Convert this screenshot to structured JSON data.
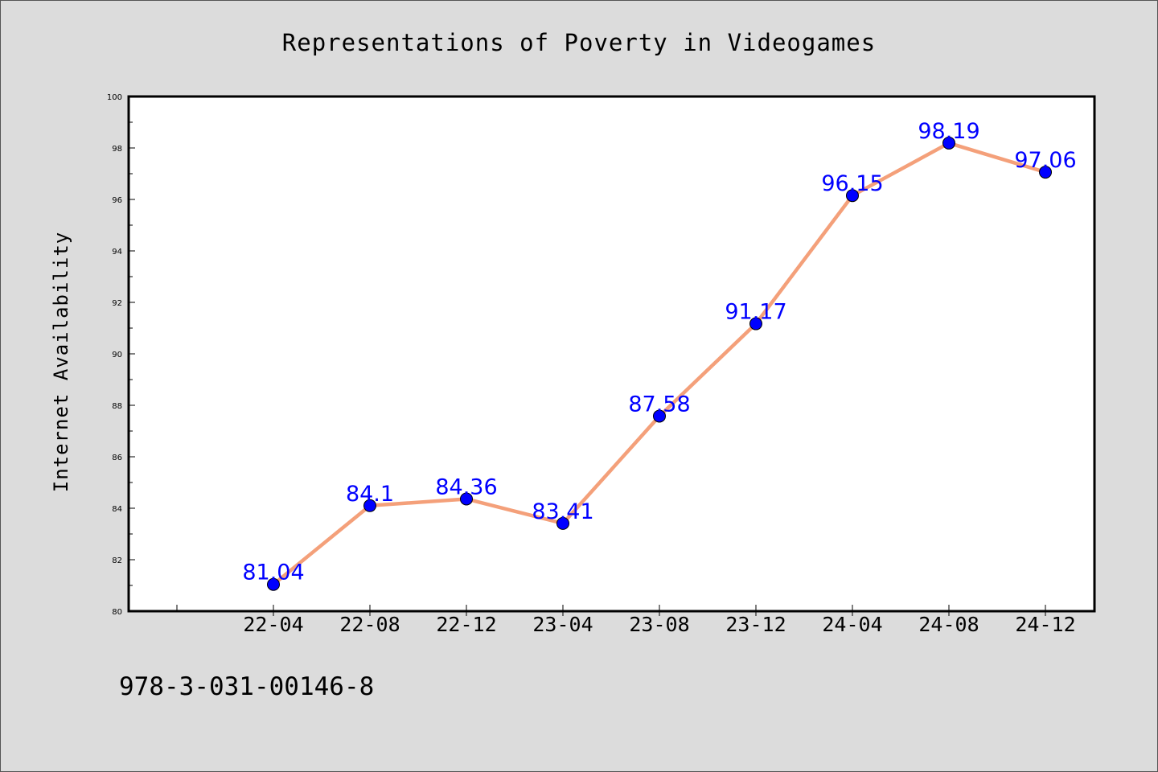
{
  "chart_data": {
    "type": "line",
    "title": "Representations of Poverty in Videogames",
    "xlabel": "",
    "ylabel": "Internet Availability",
    "categories": [
      "22-04",
      "22-08",
      "22-12",
      "23-04",
      "23-08",
      "23-12",
      "24-04",
      "24-08",
      "24-12"
    ],
    "series": [
      {
        "values": [
          81.04,
          84.1,
          84.36,
          83.41,
          87.58,
          91.17,
          96.15,
          98.19,
          97.06
        ],
        "labels": [
          "81.04",
          "84.1",
          "84.36",
          "83.41",
          "87.58",
          "91.17",
          "96.15",
          "98.19",
          "97.06"
        ],
        "line_color": "#f4a07a",
        "marker_color": "#0000ff"
      }
    ],
    "ylim": [
      80,
      100
    ],
    "yticks": [
      "80",
      "82",
      "84",
      "86",
      "88",
      "90",
      "92",
      "94",
      "96",
      "98",
      "100"
    ],
    "grid": false,
    "legend": "none"
  },
  "footer": {
    "text": "978-3-031-00146-8"
  },
  "colors": {
    "background": "#dcdcdc",
    "plot_background": "#ffffff",
    "line": "#f4a07a",
    "marker": "#0000ff",
    "data_label": "#0000ff"
  }
}
